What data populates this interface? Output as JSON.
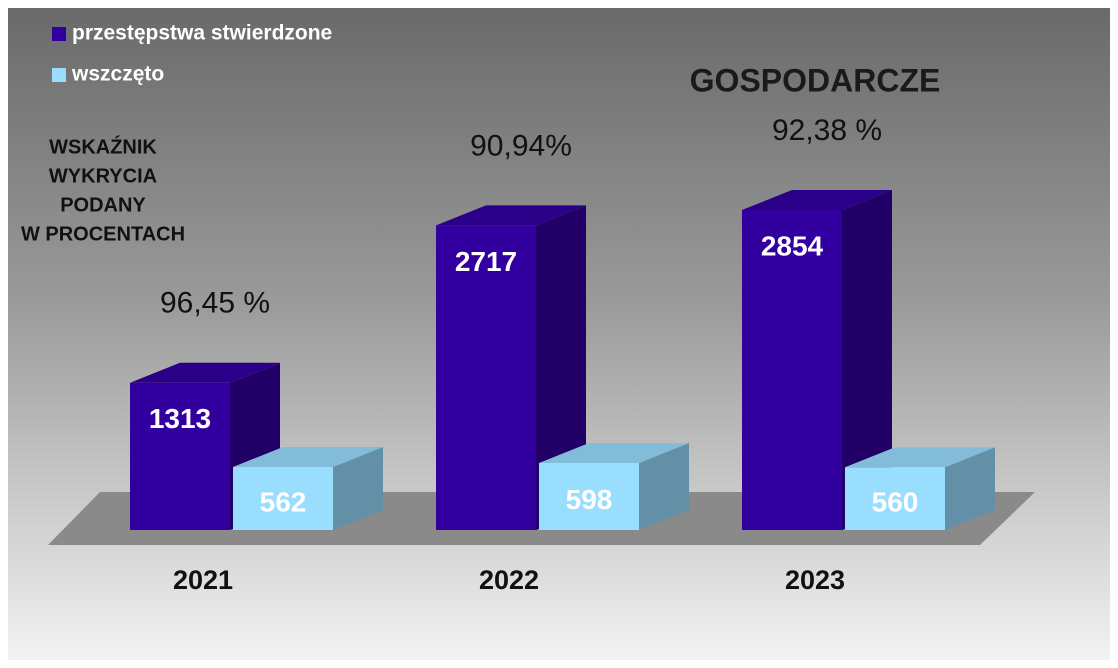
{
  "chart_data": {
    "type": "bar3d",
    "title": "GOSPODARCZE",
    "note": [
      "WSKAŹNIK",
      "WYKRYCIA",
      "PODANY",
      "W PROCENTACH"
    ],
    "categories": [
      "2021",
      "2022",
      "2023"
    ],
    "series": [
      {
        "name": "przestępstwa stwierdzone",
        "color": "#3300a0",
        "values": [
          1313,
          2717,
          2854
        ]
      },
      {
        "name": "wszczęto",
        "color": "#99ddff",
        "values": [
          562,
          598,
          560
        ]
      }
    ],
    "annotations": [
      "96,45 %",
      "90,94%",
      "92,38 %"
    ]
  }
}
